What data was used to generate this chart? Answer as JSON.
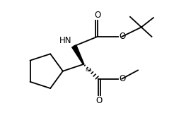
{
  "bg_color": "#ffffff",
  "line_color": "#000000",
  "lw": 1.3,
  "figsize": [
    2.46,
    1.77
  ],
  "dpi": 100,
  "xlim": [
    0,
    10
  ],
  "ylim": [
    0,
    7.2
  ]
}
